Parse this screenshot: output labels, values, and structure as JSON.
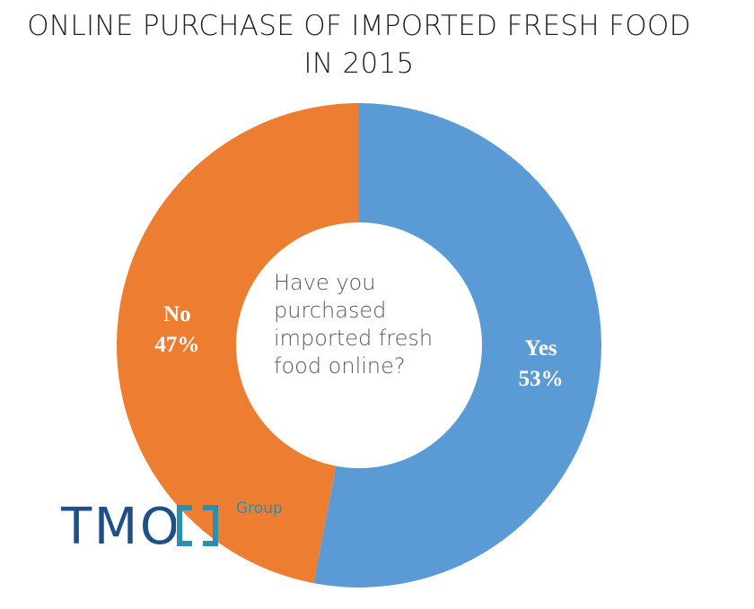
{
  "title": [
    "ONLINE PURCHASE OF IMPORTED FRESH FOOD",
    "IN 2015"
  ],
  "center_text": [
    "Have you",
    "purchased",
    "imported fresh",
    "food online?"
  ],
  "logo": {
    "text": "TMO",
    "suffix": "Group"
  },
  "colors": {
    "yes": "#5b9bd5",
    "no": "#ed7d31",
    "background": "#ffffff"
  },
  "chart_data": {
    "type": "pie",
    "variant": "donut",
    "title": "ONLINE PURCHASE OF IMPORTED FRESH FOOD IN 2015",
    "categories": [
      "Yes",
      "No"
    ],
    "values": [
      53,
      47
    ],
    "unit": "%",
    "labels": [
      {
        "name": "Yes",
        "value": "53%"
      },
      {
        "name": "No",
        "value": "47%"
      }
    ],
    "legend": "none"
  }
}
